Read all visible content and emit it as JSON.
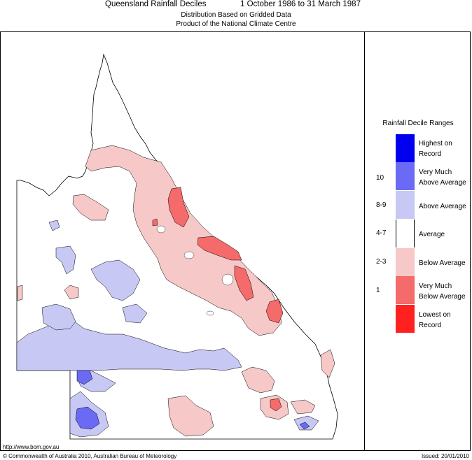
{
  "header": {
    "title": "Queensland Rainfall Deciles",
    "period": "1 October 1986 to 31 March 1987",
    "subtitle_line1": "Distribution Based on Gridded Data",
    "subtitle_line2": "Product of the National Climate Centre"
  },
  "legend": {
    "title": "Rainfall Decile Ranges",
    "entries": [
      {
        "label": "Highest on Record",
        "range": "",
        "color": "#0000ee"
      },
      {
        "label": "Very Much Above Average",
        "range": "10",
        "color": "#6a6af5"
      },
      {
        "label": "Above Average",
        "range": "8-9",
        "color": "#c8c8f5"
      },
      {
        "label": "Average",
        "range": "4-7",
        "color": "#ffffff"
      },
      {
        "label": "Below Average",
        "range": "2-3",
        "color": "#f7c8c8"
      },
      {
        "label": "Very Much Below Average",
        "range": "1",
        "color": "#f56a6a"
      },
      {
        "label": "Lowest on Record",
        "range": "",
        "color": "#ff2020"
      }
    ]
  },
  "footer": {
    "url": "http://www.bom.gov.au",
    "copyright": "© Commonwealth of Australia 2010, Australian Bureau of Meteorology",
    "issued": "Issued: 20/01/2010"
  }
}
